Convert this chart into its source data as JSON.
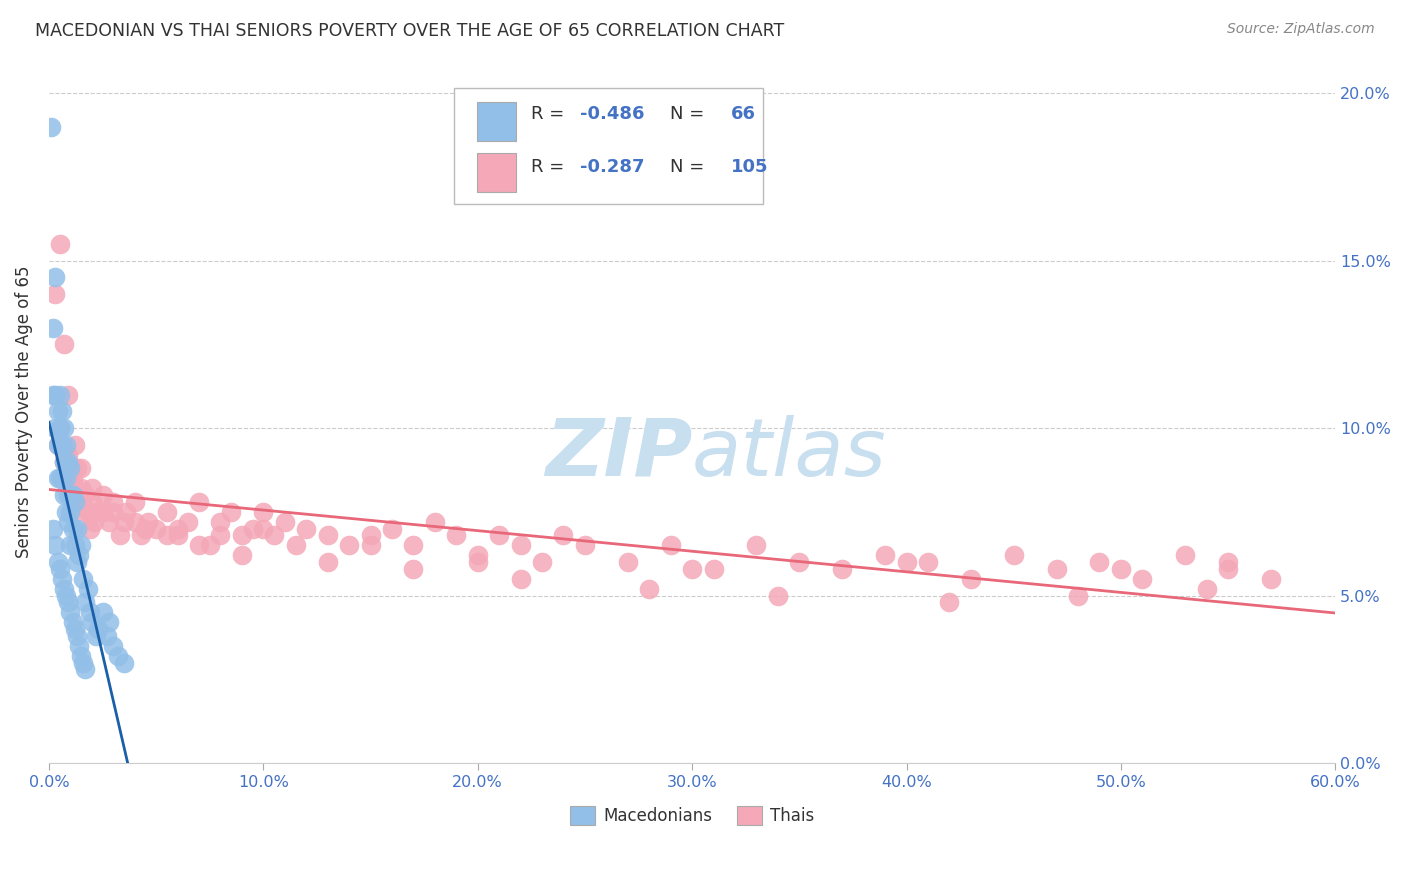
{
  "title": "MACEDONIAN VS THAI SENIORS POVERTY OVER THE AGE OF 65 CORRELATION CHART",
  "source": "Source: ZipAtlas.com",
  "ylabel": "Seniors Poverty Over the Age of 65",
  "xlabel_ticks": [
    "0.0%",
    "10.0%",
    "20.0%",
    "30.0%",
    "40.0%",
    "50.0%",
    "60.0%"
  ],
  "xlabel_vals": [
    0.0,
    0.1,
    0.2,
    0.3,
    0.4,
    0.5,
    0.6
  ],
  "ylabel_ticks": [
    "0.0%",
    "5.0%",
    "10.0%",
    "15.0%",
    "20.0%"
  ],
  "ylabel_vals": [
    0.0,
    0.05,
    0.1,
    0.15,
    0.2
  ],
  "xlim": [
    0.0,
    0.6
  ],
  "ylim": [
    0.0,
    0.21
  ],
  "mac_R": "-0.486",
  "mac_N": "66",
  "thai_R": "-0.287",
  "thai_N": "105",
  "mac_color": "#92bfe8",
  "thai_color": "#f4a8b8",
  "mac_line_color": "#1a5fa8",
  "thai_line_color": "#e8687a",
  "tick_color": "#4472c4",
  "text_color": "#333333",
  "grid_color": "#cccccc",
  "watermark_color": "#c8dff0",
  "background_color": "#ffffff",
  "legend_label_mac": "Macedonians",
  "legend_label_thai": "Thais",
  "mac_x": [
    0.001,
    0.002,
    0.002,
    0.003,
    0.003,
    0.003,
    0.004,
    0.004,
    0.004,
    0.005,
    0.005,
    0.005,
    0.005,
    0.006,
    0.006,
    0.006,
    0.007,
    0.007,
    0.007,
    0.008,
    0.008,
    0.008,
    0.009,
    0.009,
    0.009,
    0.01,
    0.01,
    0.01,
    0.01,
    0.011,
    0.011,
    0.012,
    0.012,
    0.013,
    0.013,
    0.014,
    0.015,
    0.016,
    0.017,
    0.018,
    0.019,
    0.02,
    0.022,
    0.023,
    0.025,
    0.027,
    0.028,
    0.03,
    0.032,
    0.035,
    0.002,
    0.003,
    0.004,
    0.005,
    0.006,
    0.007,
    0.008,
    0.009,
    0.01,
    0.011,
    0.012,
    0.013,
    0.014,
    0.015,
    0.016,
    0.017
  ],
  "mac_y": [
    0.19,
    0.11,
    0.13,
    0.1,
    0.145,
    0.11,
    0.105,
    0.095,
    0.085,
    0.11,
    0.1,
    0.095,
    0.085,
    0.105,
    0.095,
    0.085,
    0.1,
    0.09,
    0.08,
    0.095,
    0.085,
    0.075,
    0.09,
    0.08,
    0.072,
    0.088,
    0.08,
    0.075,
    0.065,
    0.08,
    0.07,
    0.078,
    0.065,
    0.07,
    0.06,
    0.062,
    0.065,
    0.055,
    0.048,
    0.052,
    0.045,
    0.042,
    0.038,
    0.04,
    0.045,
    0.038,
    0.042,
    0.035,
    0.032,
    0.03,
    0.07,
    0.065,
    0.06,
    0.058,
    0.055,
    0.052,
    0.05,
    0.048,
    0.045,
    0.042,
    0.04,
    0.038,
    0.035,
    0.032,
    0.03,
    0.028
  ],
  "thai_x": [
    0.003,
    0.004,
    0.005,
    0.006,
    0.007,
    0.008,
    0.009,
    0.01,
    0.011,
    0.012,
    0.013,
    0.014,
    0.015,
    0.016,
    0.017,
    0.018,
    0.019,
    0.02,
    0.021,
    0.022,
    0.025,
    0.028,
    0.03,
    0.033,
    0.036,
    0.04,
    0.043,
    0.046,
    0.05,
    0.055,
    0.06,
    0.065,
    0.07,
    0.075,
    0.08,
    0.085,
    0.09,
    0.095,
    0.1,
    0.105,
    0.11,
    0.115,
    0.12,
    0.13,
    0.14,
    0.15,
    0.16,
    0.17,
    0.18,
    0.19,
    0.2,
    0.21,
    0.22,
    0.23,
    0.24,
    0.25,
    0.27,
    0.29,
    0.31,
    0.33,
    0.35,
    0.37,
    0.39,
    0.41,
    0.43,
    0.45,
    0.47,
    0.49,
    0.51,
    0.53,
    0.55,
    0.57,
    0.005,
    0.007,
    0.009,
    0.012,
    0.015,
    0.02,
    0.03,
    0.04,
    0.06,
    0.08,
    0.1,
    0.15,
    0.2,
    0.3,
    0.4,
    0.5,
    0.55,
    0.01,
    0.013,
    0.025,
    0.035,
    0.045,
    0.055,
    0.07,
    0.09,
    0.13,
    0.17,
    0.22,
    0.28,
    0.34,
    0.42,
    0.48,
    0.54
  ],
  "thai_y": [
    0.14,
    0.095,
    0.1,
    0.095,
    0.09,
    0.085,
    0.092,
    0.088,
    0.085,
    0.082,
    0.088,
    0.078,
    0.082,
    0.075,
    0.08,
    0.075,
    0.07,
    0.078,
    0.072,
    0.075,
    0.08,
    0.072,
    0.078,
    0.068,
    0.075,
    0.078,
    0.068,
    0.072,
    0.07,
    0.075,
    0.068,
    0.072,
    0.078,
    0.065,
    0.072,
    0.075,
    0.068,
    0.07,
    0.075,
    0.068,
    0.072,
    0.065,
    0.07,
    0.068,
    0.065,
    0.068,
    0.07,
    0.065,
    0.072,
    0.068,
    0.062,
    0.068,
    0.065,
    0.06,
    0.068,
    0.065,
    0.06,
    0.065,
    0.058,
    0.065,
    0.06,
    0.058,
    0.062,
    0.06,
    0.055,
    0.062,
    0.058,
    0.06,
    0.055,
    0.062,
    0.058,
    0.055,
    0.155,
    0.125,
    0.11,
    0.095,
    0.088,
    0.082,
    0.075,
    0.072,
    0.07,
    0.068,
    0.07,
    0.065,
    0.06,
    0.058,
    0.06,
    0.058,
    0.06,
    0.085,
    0.08,
    0.075,
    0.072,
    0.07,
    0.068,
    0.065,
    0.062,
    0.06,
    0.058,
    0.055,
    0.052,
    0.05,
    0.048,
    0.05,
    0.052
  ]
}
